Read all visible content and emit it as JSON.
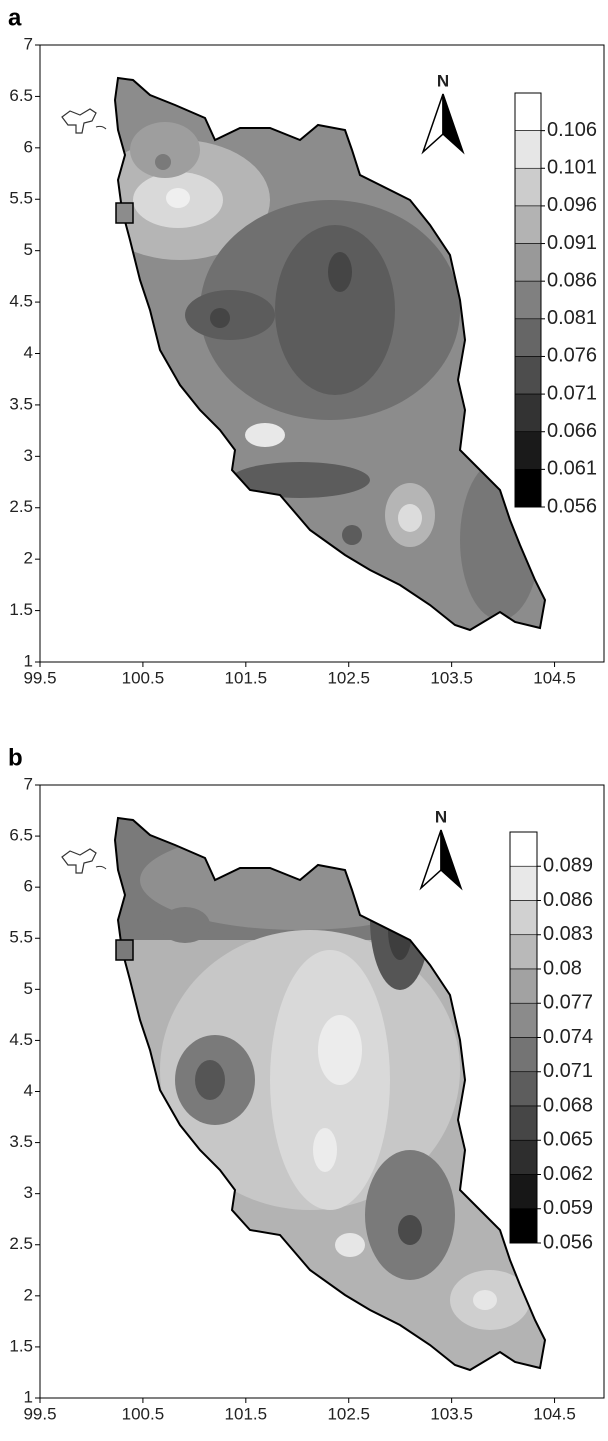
{
  "panels": [
    {
      "label": "a",
      "north": "N",
      "xlim": [
        99.5,
        105
      ],
      "ylim": [
        1,
        7
      ],
      "xticks": [
        99.5,
        100.5,
        101.5,
        102.5,
        103.5,
        104.5
      ],
      "yticks": [
        1,
        1.5,
        2,
        2.5,
        3,
        3.5,
        4,
        4.5,
        5,
        5.5,
        6,
        6.5,
        7
      ],
      "legend": {
        "levels": [
          0.106,
          0.101,
          0.096,
          0.091,
          0.086,
          0.081,
          0.076,
          0.071,
          0.066,
          0.061,
          0.056
        ]
      }
    },
    {
      "label": "b",
      "north": "N",
      "xlim": [
        99.5,
        105
      ],
      "ylim": [
        1,
        7
      ],
      "xticks": [
        99.5,
        100.5,
        101.5,
        102.5,
        103.5,
        104.5
      ],
      "yticks": [
        1,
        1.5,
        2,
        2.5,
        3,
        3.5,
        4,
        4.5,
        5,
        5.5,
        6,
        6.5,
        7
      ],
      "legend": {
        "levels": [
          0.089,
          0.086,
          0.083,
          0.08,
          0.077,
          0.074,
          0.071,
          0.068,
          0.065,
          0.062,
          0.059,
          0.056
        ]
      }
    }
  ]
}
